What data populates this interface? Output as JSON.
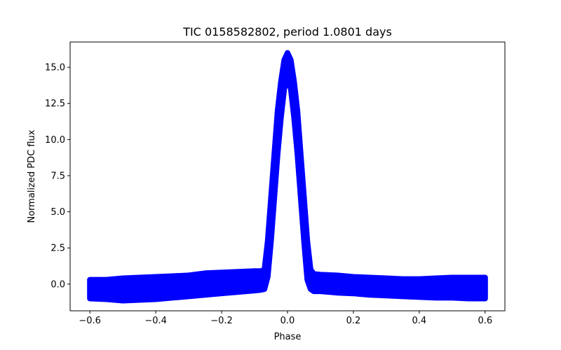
{
  "chart_data": {
    "type": "scatter",
    "title": "TIC 0158582802, period 1.0801 days",
    "xlabel": "Phase",
    "ylabel": "Normalized PDC flux",
    "xlim": [
      -0.66,
      0.66
    ],
    "ylim": [
      -1.85,
      16.75
    ],
    "xticks": [
      -0.6,
      -0.4,
      -0.2,
      0.0,
      0.2,
      0.4,
      0.6
    ],
    "xtick_labels": [
      "−0.6",
      "−0.4",
      "−0.2",
      "0.0",
      "0.2",
      "0.4",
      "0.6"
    ],
    "yticks": [
      0.0,
      2.5,
      5.0,
      7.5,
      10.0,
      12.5,
      15.0
    ],
    "ytick_labels": [
      "0.0",
      "2.5",
      "5.0",
      "7.5",
      "10.0",
      "12.5",
      "15.0"
    ],
    "grid": false,
    "color": "#0000ff",
    "series": [
      {
        "x": [
          -0.6,
          -0.55,
          -0.5,
          -0.45,
          -0.4,
          -0.35,
          -0.3,
          -0.25,
          -0.2,
          -0.15,
          -0.1,
          -0.08,
          -0.07,
          -0.06,
          -0.05,
          -0.04,
          -0.03,
          -0.02,
          -0.01,
          0.0,
          0.01,
          0.02,
          0.03,
          0.04,
          0.05,
          0.06,
          0.07,
          0.08,
          0.1,
          0.15,
          0.2,
          0.25,
          0.3,
          0.35,
          0.4,
          0.45,
          0.5,
          0.55,
          0.6
        ],
        "y_upper": [
          0.3,
          0.3,
          0.4,
          0.45,
          0.5,
          0.55,
          0.6,
          0.75,
          0.8,
          0.85,
          0.9,
          0.9,
          1.0,
          3.0,
          6.0,
          9.0,
          12.0,
          14.0,
          15.5,
          16.0,
          15.5,
          14.0,
          12.0,
          9.0,
          6.0,
          3.0,
          1.0,
          0.7,
          0.65,
          0.6,
          0.5,
          0.45,
          0.4,
          0.35,
          0.35,
          0.4,
          0.45,
          0.45,
          0.45
        ],
        "y_lower": [
          -1.0,
          -1.05,
          -1.15,
          -1.1,
          -1.05,
          -0.95,
          -0.85,
          -0.75,
          -0.65,
          -0.55,
          -0.45,
          -0.4,
          -0.35,
          0.5,
          3.0,
          6.0,
          9.0,
          11.5,
          13.5,
          14.3,
          13.5,
          11.5,
          9.0,
          6.0,
          3.0,
          0.3,
          -0.35,
          -0.5,
          -0.5,
          -0.6,
          -0.65,
          -0.75,
          -0.8,
          -0.85,
          -0.9,
          -0.95,
          -0.95,
          -1.0,
          -1.0
        ]
      }
    ]
  }
}
